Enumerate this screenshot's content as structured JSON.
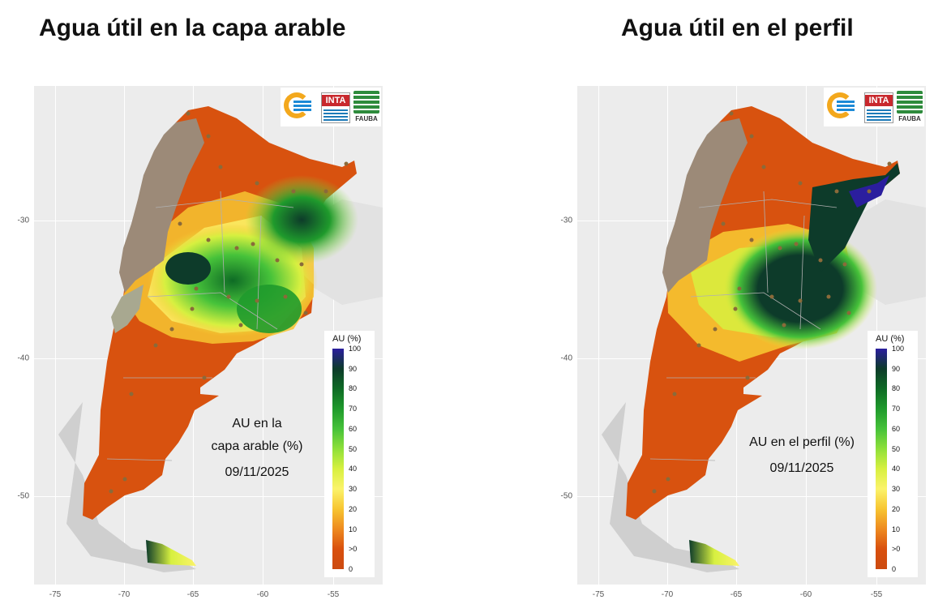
{
  "titles": {
    "left": "Agua útil en la capa arable",
    "right": "Agua útil en el perfil"
  },
  "panels": {
    "left": {
      "annotation_lines": [
        "AU en la",
        "capa arable (%)",
        "09/11/2025"
      ]
    },
    "right": {
      "annotation_lines": [
        "AU en el perfil (%)",
        "09/11/2025"
      ]
    }
  },
  "axes": {
    "x_ticks": [
      "-75",
      "-70",
      "-65",
      "-60",
      "-55"
    ],
    "y_ticks": [
      "-30",
      "-40",
      "-50"
    ]
  },
  "logos": {
    "fauba_text": "FAUBA",
    "inta_text": "INTA"
  },
  "legend": {
    "title": "AU (%)",
    "labels": [
      "100",
      "90",
      "80",
      "70",
      "60",
      "50",
      "40",
      "30",
      "20",
      "10",
      ">0",
      "0"
    ],
    "colors": [
      "#2b1e9e",
      "#0d3b2a",
      "#0e6b25",
      "#1f9a2c",
      "#46c23a",
      "#8fe03a",
      "#d7f040",
      "#fbf36a",
      "#f7c531",
      "#ee8a1f",
      "#d9500e",
      "#cc4a10"
    ]
  },
  "map_colors": {
    "background": "#ececec",
    "dry": "#d8520f",
    "andes": "#9c8a78",
    "neighbors": "#cfcfcf",
    "stations": "#8a6a3a"
  }
}
